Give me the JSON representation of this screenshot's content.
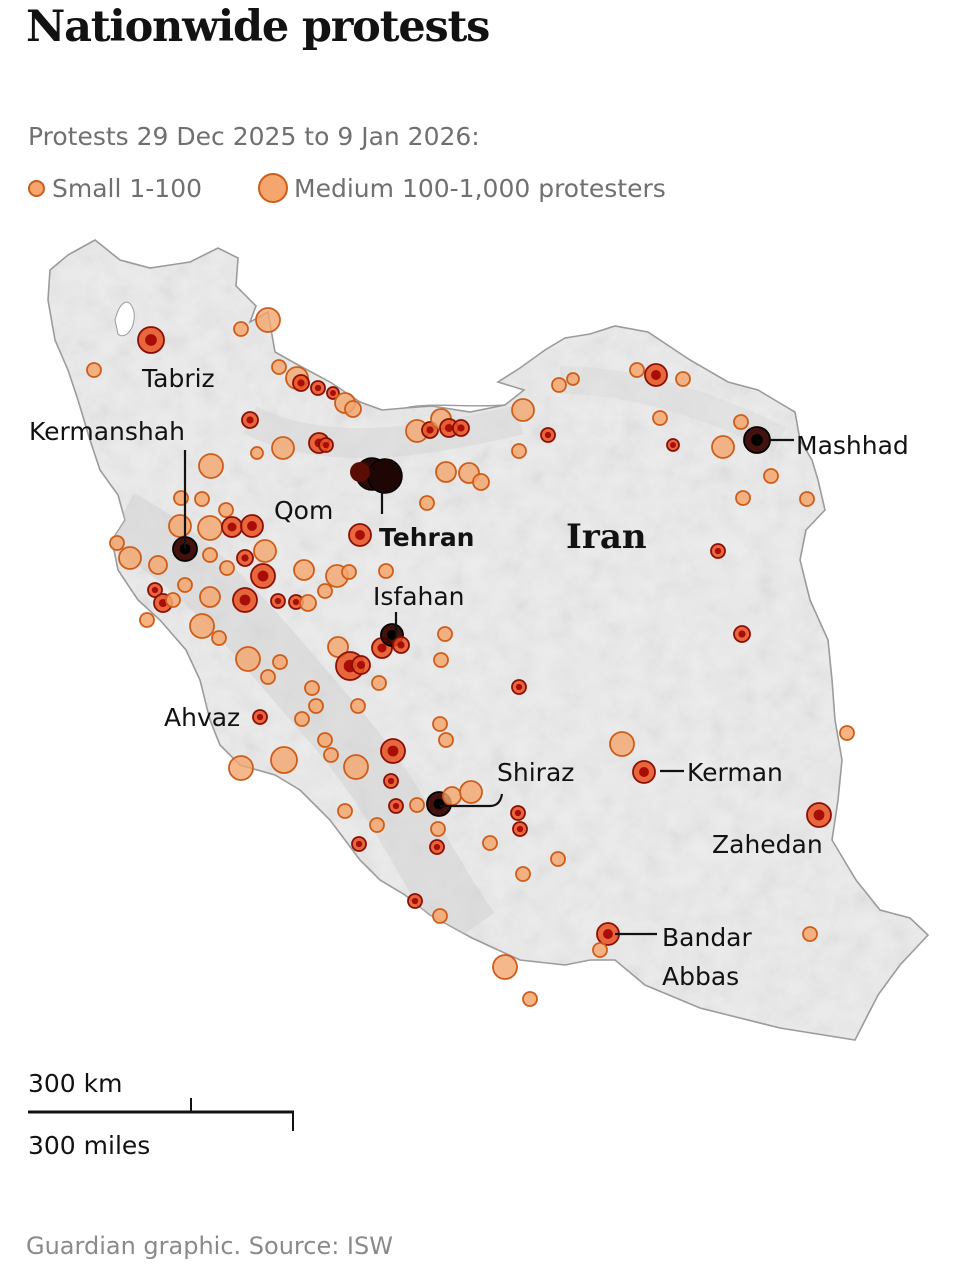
{
  "title": "Nationwide protests",
  "subtitle": "Protests 29 Dec 2025 to 9 Jan 2026:",
  "legend": {
    "small_label": "Small 1-100",
    "medium_label": "Medium 100-1,000 protesters"
  },
  "colors": {
    "small_fill": "#f4a66e",
    "small_stroke": "#cf5d1a",
    "medium_fill": "#e8501f",
    "dark": "#8b0f06",
    "land": "#e9e9e9",
    "water": "#ffffff"
  },
  "map": {
    "country_label": "Iran",
    "cities": [
      {
        "name": "Tabriz"
      },
      {
        "name": "Kermanshah"
      },
      {
        "name": "Qom"
      },
      {
        "name": "Tehran",
        "bold": true
      },
      {
        "name": "Isfahan"
      },
      {
        "name": "Ahvaz"
      },
      {
        "name": "Shiraz"
      },
      {
        "name": "Kerman"
      },
      {
        "name": "Zahedan"
      },
      {
        "name": "Mashhad"
      },
      {
        "name": "Bandar"
      },
      {
        "name": "Abbas"
      }
    ]
  },
  "scale": {
    "km_label": "300 km",
    "mi_label": "300 miles"
  },
  "source": "Guardian graphic. Source: ISW"
}
